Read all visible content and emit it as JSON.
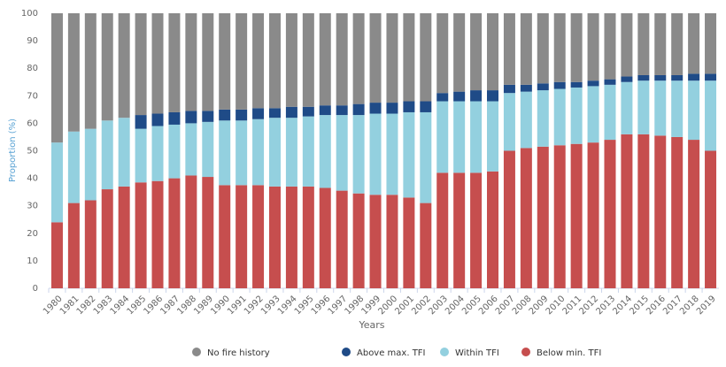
{
  "chart_data": {
    "type": "stacked-bar",
    "x_label": "Years",
    "y_label": "Proportion (%)",
    "categories": [
      "1980",
      "1981",
      "1982",
      "1983",
      "1984",
      "1985",
      "1986",
      "1987",
      "1988",
      "1989",
      "1990",
      "1991",
      "1992",
      "1993",
      "1994",
      "1995",
      "1996",
      "1997",
      "1998",
      "1999",
      "2000",
      "2001",
      "2002",
      "2003",
      "2004",
      "2005",
      "2006",
      "2007",
      "2008",
      "2009",
      "2010",
      "2011",
      "2012",
      "2013",
      "2014",
      "2015",
      "2016",
      "2017",
      "2018",
      "2019"
    ],
    "series": [
      {
        "name": "No fire history",
        "color": "#8a8a8a",
        "values": [
          47,
          43,
          42,
          39,
          38,
          37,
          36.5,
          36,
          35.5,
          35.5,
          35,
          35,
          34.5,
          34.5,
          34,
          34,
          33.5,
          33.5,
          33,
          32.5,
          32.5,
          32,
          32,
          29,
          28.5,
          28,
          28,
          26,
          26,
          25.5,
          25,
          25,
          24.5,
          24,
          23,
          22.5,
          22.5,
          22.5,
          22,
          22
        ]
      },
      {
        "name": "Above max. TFI",
        "color": "#1f4b87",
        "values": [
          0,
          0,
          0,
          0,
          0,
          5,
          4.5,
          4.5,
          4.5,
          4,
          4,
          4,
          4,
          3.5,
          4,
          3.5,
          3.5,
          3.5,
          4,
          4,
          4,
          4,
          4,
          3,
          3.5,
          4,
          4,
          3,
          2.5,
          2.5,
          2.5,
          2,
          2,
          2,
          2,
          2,
          2,
          2,
          2.5,
          2.5
        ]
      },
      {
        "name": "Within TFI",
        "color": "#93d0df",
        "values": [
          29,
          26,
          26,
          25,
          25,
          19.5,
          20,
          19.5,
          19,
          20,
          23.5,
          23.5,
          24,
          25,
          25,
          25.5,
          26.5,
          27.5,
          28.5,
          29.5,
          29.5,
          31,
          33,
          26,
          26,
          26,
          25.5,
          21,
          20.5,
          20.5,
          20.5,
          20.5,
          20.5,
          20,
          19,
          19.5,
          20,
          20.5,
          21.5,
          25.5
        ]
      },
      {
        "name": "Below min. TFI",
        "color": "#c64e4e",
        "values": [
          24,
          31,
          32,
          36,
          37,
          38.5,
          39,
          40,
          41,
          40.5,
          37.5,
          37.5,
          37.5,
          37,
          37,
          37,
          36.5,
          35.5,
          34.5,
          34,
          34,
          33,
          31,
          42,
          42,
          42,
          42.5,
          50,
          51,
          51.5,
          52,
          52.5,
          53,
          54,
          56,
          56,
          55.5,
          55,
          54,
          50
        ]
      }
    ],
    "ylim": [
      0,
      100
    ],
    "yticks": [
      0,
      10,
      20,
      30,
      40,
      50,
      60,
      70,
      80,
      90,
      100
    ],
    "grid": false
  }
}
